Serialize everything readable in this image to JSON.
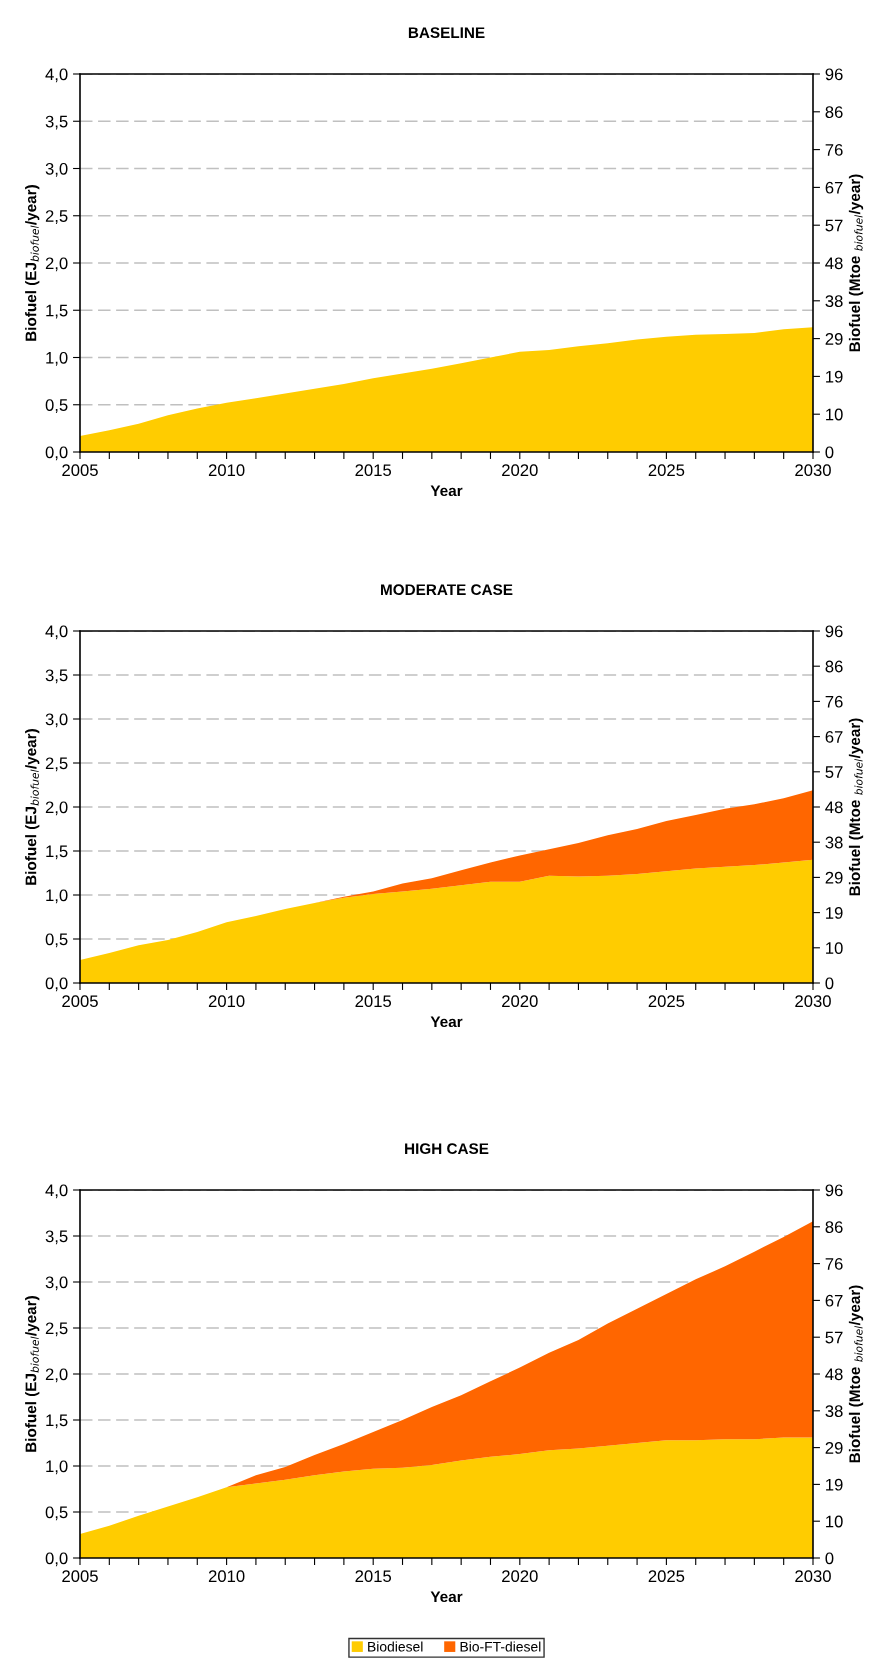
{
  "chart_data": [
    {
      "type": "area",
      "title": "BASELINE",
      "xlabel": "Year",
      "ylabel": "Biofuel (EJ$_{biofuel}$/year)",
      "y2label": "Biofuel (Mtoe $_{biofuel}$/year)",
      "stacked": true,
      "grid": "y",
      "legend": false,
      "x": [
        2005,
        2006,
        2007,
        2008,
        2009,
        2010,
        2011,
        2012,
        2013,
        2014,
        2015,
        2016,
        2017,
        2018,
        2019,
        2020,
        2021,
        2022,
        2023,
        2024,
        2025,
        2026,
        2027,
        2028,
        2029,
        2030
      ],
      "series": [
        {
          "color": "#ffcc00",
          "values": [
            0.17,
            0.23,
            0.3,
            0.39,
            0.46,
            0.52,
            0.57,
            0.62,
            0.67,
            0.72,
            0.78,
            0.83,
            0.88,
            0.94,
            1.0,
            1.06,
            1.08,
            1.12,
            1.15,
            1.19,
            1.22,
            1.24,
            1.25,
            1.26,
            1.3,
            1.32
          ]
        }
      ],
      "xlim": [
        2005,
        2030
      ],
      "xticks": [
        2005,
        {
          "value": 2006,
          "label": null
        },
        {
          "value": 2007,
          "label": null
        },
        {
          "value": 2008,
          "label": null
        },
        {
          "value": 2009,
          "label": null
        },
        2010,
        {
          "value": 2011,
          "label": null
        },
        {
          "value": 2012,
          "label": null
        },
        {
          "value": 2013,
          "label": null
        },
        {
          "value": 2014,
          "label": null
        },
        2015,
        {
          "value": 2016,
          "label": null
        },
        {
          "value": 2017,
          "label": null
        },
        {
          "value": 2018,
          "label": null
        },
        {
          "value": 2019,
          "label": null
        },
        2020,
        {
          "value": 2021,
          "label": null
        },
        {
          "value": 2022,
          "label": null
        },
        {
          "value": 2023,
          "label": null
        },
        {
          "value": 2024,
          "label": null
        },
        2025,
        {
          "value": 2026,
          "label": null
        },
        {
          "value": 2027,
          "label": null
        },
        {
          "value": 2028,
          "label": null
        },
        {
          "value": 2029,
          "label": null
        },
        2030
      ],
      "ylim": [
        0,
        4
      ],
      "yticks": [
        {
          "value": 0,
          "label": "0,0"
        },
        {
          "value": 0.5,
          "label": "0,5"
        },
        {
          "value": 1,
          "label": "1,0"
        },
        {
          "value": 1.5,
          "label": "1,5"
        },
        {
          "value": 2,
          "label": "2,0"
        },
        {
          "value": 2.5,
          "label": "2,5"
        },
        {
          "value": 3,
          "label": "3,0"
        },
        {
          "value": 3.5,
          "label": "3,5"
        },
        {
          "value": 4,
          "label": "4,0"
        }
      ],
      "y2lim": [
        0,
        95.5
      ],
      "y2ticks": [
        0,
        {
          "value": 9.55,
          "label": "10"
        },
        {
          "value": 19.1,
          "label": "19"
        },
        {
          "value": 28.65,
          "label": "29"
        },
        {
          "value": 38.2,
          "label": "38"
        },
        {
          "value": 47.75,
          "label": "48"
        },
        {
          "value": 57.3,
          "label": "57"
        },
        {
          "value": 66.85,
          "label": "67"
        },
        {
          "value": 76.4,
          "label": "76"
        },
        {
          "value": 85.95,
          "label": "86"
        },
        {
          "value": 95.5,
          "label": "96"
        }
      ]
    },
    {
      "type": "area",
      "title": "MODERATE CASE",
      "xlabel": "Year",
      "ylabel": "Biofuel (EJ$_{biofuel}$/year)",
      "y2label": "Biofuel (Mtoe $_{biofuel}$/year)",
      "stacked": true,
      "grid": "y",
      "legend": false,
      "x": [
        2005,
        2006,
        2007,
        2008,
        2009,
        2010,
        2011,
        2012,
        2013,
        2014,
        2015,
        2016,
        2017,
        2018,
        2019,
        2020,
        2021,
        2022,
        2023,
        2024,
        2025,
        2026,
        2027,
        2028,
        2029,
        2030
      ],
      "series": [
        {
          "color": "#ffcc00",
          "values": [
            0.26,
            0.34,
            0.43,
            0.49,
            0.58,
            0.69,
            0.76,
            0.84,
            0.91,
            0.97,
            1.01,
            1.04,
            1.07,
            1.11,
            1.15,
            1.15,
            1.22,
            1.21,
            1.22,
            1.24,
            1.27,
            1.3,
            1.32,
            1.34,
            1.37,
            1.4
          ]
        },
        {
          "color": "#ff6600",
          "values": [
            0,
            0,
            0,
            0,
            0,
            0,
            0,
            0,
            0,
            0.01,
            0.03,
            0.09,
            0.12,
            0.17,
            0.22,
            0.3,
            0.3,
            0.38,
            0.46,
            0.51,
            0.57,
            0.61,
            0.66,
            0.69,
            0.73,
            0.79
          ]
        }
      ],
      "xlim": [
        2005,
        2030
      ],
      "xticks": [
        2005,
        {
          "value": 2006,
          "label": null
        },
        {
          "value": 2007,
          "label": null
        },
        {
          "value": 2008,
          "label": null
        },
        {
          "value": 2009,
          "label": null
        },
        2010,
        {
          "value": 2011,
          "label": null
        },
        {
          "value": 2012,
          "label": null
        },
        {
          "value": 2013,
          "label": null
        },
        {
          "value": 2014,
          "label": null
        },
        2015,
        {
          "value": 2016,
          "label": null
        },
        {
          "value": 2017,
          "label": null
        },
        {
          "value": 2018,
          "label": null
        },
        {
          "value": 2019,
          "label": null
        },
        2020,
        {
          "value": 2021,
          "label": null
        },
        {
          "value": 2022,
          "label": null
        },
        {
          "value": 2023,
          "label": null
        },
        {
          "value": 2024,
          "label": null
        },
        2025,
        {
          "value": 2026,
          "label": null
        },
        {
          "value": 2027,
          "label": null
        },
        {
          "value": 2028,
          "label": null
        },
        {
          "value": 2029,
          "label": null
        },
        2030
      ],
      "ylim": [
        0,
        4
      ],
      "yticks": [
        {
          "value": 0,
          "label": "0,0"
        },
        {
          "value": 0.5,
          "label": "0,5"
        },
        {
          "value": 1,
          "label": "1,0"
        },
        {
          "value": 1.5,
          "label": "1,5"
        },
        {
          "value": 2,
          "label": "2,0"
        },
        {
          "value": 2.5,
          "label": "2,5"
        },
        {
          "value": 3,
          "label": "3,0"
        },
        {
          "value": 3.5,
          "label": "3,5"
        },
        {
          "value": 4,
          "label": "4,0"
        }
      ],
      "y2lim": [
        0,
        95.5
      ],
      "y2ticks": [
        0,
        {
          "value": 9.55,
          "label": "10"
        },
        {
          "value": 19.1,
          "label": "19"
        },
        {
          "value": 28.65,
          "label": "29"
        },
        {
          "value": 38.2,
          "label": "38"
        },
        {
          "value": 47.75,
          "label": "48"
        },
        {
          "value": 57.3,
          "label": "57"
        },
        {
          "value": 66.85,
          "label": "67"
        },
        {
          "value": 76.4,
          "label": "76"
        },
        {
          "value": 85.95,
          "label": "86"
        },
        {
          "value": 95.5,
          "label": "96"
        }
      ]
    },
    {
      "type": "area",
      "title": "HIGH CASE",
      "xlabel": "Year",
      "ylabel": "Biofuel (EJ$_{biofuel}$/year)",
      "y2label": "Biofuel (Mtoe $_{biofuel}$/year)",
      "stacked": true,
      "grid": "y",
      "legend": "bottom",
      "x": [
        2005,
        2006,
        2007,
        2008,
        2009,
        2010,
        2011,
        2012,
        2013,
        2014,
        2015,
        2016,
        2017,
        2018,
        2019,
        2020,
        2021,
        2022,
        2023,
        2024,
        2025,
        2026,
        2027,
        2028,
        2029,
        2030
      ],
      "series": [
        {
          "name": "Biodiesel",
          "color": "#ffcc00",
          "values": [
            0.26,
            0.35,
            0.46,
            0.56,
            0.66,
            0.77,
            0.81,
            0.85,
            0.9,
            0.94,
            0.97,
            0.98,
            1.01,
            1.06,
            1.1,
            1.13,
            1.17,
            1.19,
            1.22,
            1.25,
            1.28,
            1.28,
            1.29,
            1.29,
            1.31,
            1.31
          ]
        },
        {
          "name": "Bio-FT-diesel",
          "color": "#ff6600",
          "values": [
            0,
            0,
            0,
            0,
            0,
            0,
            0.09,
            0.14,
            0.22,
            0.3,
            0.4,
            0.52,
            0.63,
            0.71,
            0.82,
            0.94,
            1.06,
            1.18,
            1.33,
            1.46,
            1.59,
            1.75,
            1.88,
            2.04,
            2.18,
            2.35
          ]
        }
      ],
      "xlim": [
        2005,
        2030
      ],
      "xticks": [
        2005,
        {
          "value": 2006,
          "label": null
        },
        {
          "value": 2007,
          "label": null
        },
        {
          "value": 2008,
          "label": null
        },
        {
          "value": 2009,
          "label": null
        },
        2010,
        {
          "value": 2011,
          "label": null
        },
        {
          "value": 2012,
          "label": null
        },
        {
          "value": 2013,
          "label": null
        },
        {
          "value": 2014,
          "label": null
        },
        2015,
        {
          "value": 2016,
          "label": null
        },
        {
          "value": 2017,
          "label": null
        },
        {
          "value": 2018,
          "label": null
        },
        {
          "value": 2019,
          "label": null
        },
        2020,
        {
          "value": 2021,
          "label": null
        },
        {
          "value": 2022,
          "label": null
        },
        {
          "value": 2023,
          "label": null
        },
        {
          "value": 2024,
          "label": null
        },
        2025,
        {
          "value": 2026,
          "label": null
        },
        {
          "value": 2027,
          "label": null
        },
        {
          "value": 2028,
          "label": null
        },
        {
          "value": 2029,
          "label": null
        },
        2030
      ],
      "ylim": [
        0,
        4
      ],
      "yticks": [
        {
          "value": 0,
          "label": "0,0"
        },
        {
          "value": 0.5,
          "label": "0,5"
        },
        {
          "value": 1,
          "label": "1,0"
        },
        {
          "value": 1.5,
          "label": "1,5"
        },
        {
          "value": 2,
          "label": "2,0"
        },
        {
          "value": 2.5,
          "label": "2,5"
        },
        {
          "value": 3,
          "label": "3,0"
        },
        {
          "value": 3.5,
          "label": "3,5"
        },
        {
          "value": 4,
          "label": "4,0"
        }
      ],
      "y2lim": [
        0,
        95.5
      ],
      "y2ticks": [
        0,
        {
          "value": 9.55,
          "label": "10"
        },
        {
          "value": 19.1,
          "label": "19"
        },
        {
          "value": 28.65,
          "label": "29"
        },
        {
          "value": 38.2,
          "label": "38"
        },
        {
          "value": 47.75,
          "label": "48"
        },
        {
          "value": 57.3,
          "label": "57"
        },
        {
          "value": 66.85,
          "label": "67"
        },
        {
          "value": 76.4,
          "label": "76"
        },
        {
          "value": 85.95,
          "label": "86"
        },
        {
          "value": 95.5,
          "label": "96"
        }
      ]
    }
  ]
}
